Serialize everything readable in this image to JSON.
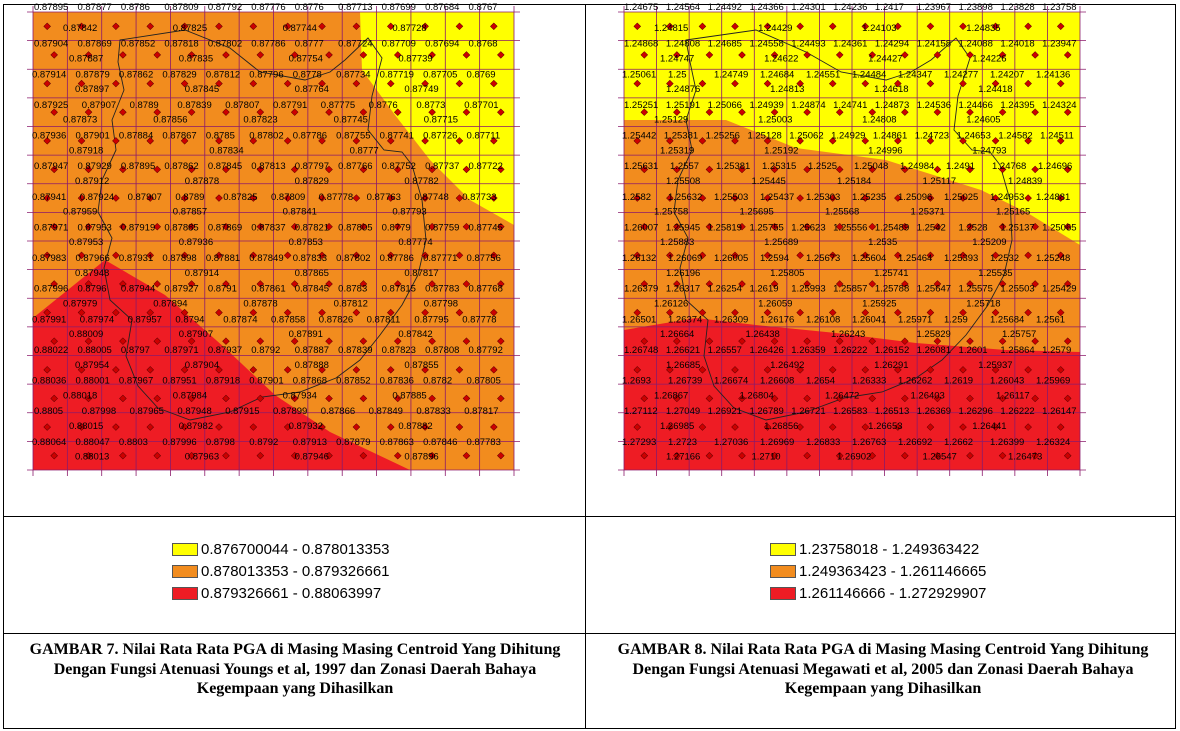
{
  "colors": {
    "yellow": "#ffff00",
    "orange": "#f28c1e",
    "red": "#ee1c24",
    "grid": "#8b1a6b",
    "point": "#cc0000"
  },
  "figure7": {
    "labels_top": [
      "0.87895",
      "0.87877",
      "0.8786",
      "0.87809",
      "0.87792",
      "0.87776",
      "0.8776",
      "0.87713",
      "0.87699",
      "0.87684",
      "0.8767"
    ],
    "row_labels": [
      [
        "0.87904",
        "0.87869",
        "0.87852",
        "0.87818",
        "0.87802",
        "0.87786",
        "0.8777",
        "0.87724",
        "0.87709",
        "0.87694",
        "0.8768"
      ],
      [
        "0.87914",
        "0.87879",
        "0.87862",
        "0.87829",
        "0.87812",
        "0.87796",
        "0.8778",
        "0.87734",
        "0.87719",
        "0.87705",
        "0.8769"
      ],
      [
        "0.87925",
        "0.87907",
        "0.8789",
        "0.87839",
        "0.87807",
        "0.87791",
        "0.87775",
        "0.8776",
        "0.8773",
        "0.87701"
      ],
      [
        "0.87936",
        "0.87901",
        "0.87884",
        "0.87867",
        "0.8785",
        "0.87802",
        "0.87786",
        "0.87755",
        "0.87741",
        "0.87726",
        "0.87711"
      ],
      [
        "0.87947",
        "0.87929",
        "0.87895",
        "0.87862",
        "0.87845",
        "0.87813",
        "0.87797",
        "0.87766",
        "0.87752",
        "0.87737",
        "0.87722"
      ],
      [
        "0.87941",
        "0.87924",
        "0.87907",
        "0.8789",
        "0.87825",
        "0.87809",
        "0.87778",
        "0.87763",
        "0.87748",
        "0.87733"
      ],
      [
        "0.87971",
        "0.87953",
        "0.87919",
        "0.87885",
        "0.87869",
        "0.87837",
        "0.87821",
        "0.87805",
        "0.8779",
        "0.87759",
        "0.87745"
      ],
      [
        "0.87983",
        "0.87966",
        "0.87931",
        "0.87898",
        "0.87881",
        "0.87849",
        "0.87833",
        "0.87802",
        "0.87786",
        "0.87771",
        "0.87756"
      ],
      [
        "0.87996",
        "0.8796",
        "0.87944",
        "0.87927",
        "0.8791",
        "0.87861",
        "0.87845",
        "0.8783",
        "0.87815",
        "0.87783",
        "0.87768"
      ],
      [
        "0.87991",
        "0.87974",
        "0.87957",
        "0.8794",
        "0.87874",
        "0.87858",
        "0.87826",
        "0.87811",
        "0.87795",
        "0.87778"
      ],
      [
        "0.88022",
        "0.88005",
        "0.8797",
        "0.87971",
        "0.87937",
        "0.8792",
        "0.87887",
        "0.87839",
        "0.87823",
        "0.87808",
        "0.87792"
      ],
      [
        "0.88036",
        "0.88001",
        "0.87967",
        "0.87951",
        "0.87918",
        "0.87901",
        "0.87868",
        "0.87852",
        "0.87836",
        "0.8782",
        "0.87805"
      ],
      [
        "0.8805",
        "0.87998",
        "0.87965",
        "0.87948",
        "0.87915",
        "0.87899",
        "0.87866",
        "0.87849",
        "0.87833",
        "0.87817"
      ],
      [
        "0.88064",
        "0.88047",
        "0.8803",
        "0.87996",
        "0.8798",
        "0.8792",
        "0.87913",
        "0.87879",
        "0.87863",
        "0.87846",
        "0.87783"
      ]
    ],
    "inner_labels": [
      [
        "0.87842",
        "0.87825",
        "0.87744",
        "0.87728"
      ],
      [
        "0.87887",
        "0.87835",
        "0.87754",
        "0.87739"
      ],
      [
        "0.87897",
        "0.87845",
        "0.87764",
        "0.87749"
      ],
      [
        "0.87873",
        "0.87856",
        "0.87823",
        "0.87745",
        "0.87715"
      ],
      [
        "0.87918",
        "0.87834",
        "0.8777"
      ],
      [
        "0.87912",
        "0.87878",
        "0.87829",
        "0.87782"
      ],
      [
        "0.87959",
        "0.87857",
        "0.87841",
        "0.87793"
      ],
      [
        "0.87953",
        "0.87936",
        "0.87853",
        "0.87774"
      ],
      [
        "0.87948",
        "0.87914",
        "0.87865",
        "0.87817"
      ],
      [
        "0.87979",
        "0.87894",
        "0.87878",
        "0.87812",
        "0.87798"
      ],
      [
        "0.88009",
        "0.87907",
        "0.87891",
        "0.87842"
      ],
      [
        "0.87954",
        "0.87904",
        "0.87888",
        "0.87855"
      ],
      [
        "0.88018",
        "0.87984",
        "0.87934",
        "0.87885"
      ],
      [
        "0.88015",
        "0.87982",
        "0.87932",
        "0.87882"
      ],
      [
        "0.88013",
        "0.87963",
        "0.87946",
        "0.87896"
      ]
    ],
    "legend": [
      {
        "label": "0.876700044 - 0.878013353",
        "color": "#ffff00"
      },
      {
        "label": "0.878013353 - 0.879326661",
        "color": "#f28c1e"
      },
      {
        "label": "0.879326661 - 0.88063997",
        "color": "#ee1c24"
      }
    ],
    "caption": "GAMBAR 7. Nilai Rata Rata PGA di Masing Masing Centroid  Yang Dihitung Dengan Fungsi Atenuasi Youngs et al, 1997  dan Zonasi Daerah Bahaya Kegempaan yang Dihasilkan"
  },
  "figure8": {
    "labels_top": [
      "1.24675",
      "1.24564",
      "1.24492",
      "1.24366",
      "1.24301",
      "1.24236",
      "1.2417",
      "1.23967",
      "1.23898",
      "1.23828",
      "1.23758"
    ],
    "row_labels": [
      [
        "1.24868",
        "1.24808",
        "1.24685",
        "1.24558",
        "1.24493",
        "1.24361",
        "1.24294",
        "1.24158",
        "1.24088",
        "1.24018",
        "1.23947"
      ],
      [
        "1.25061",
        "1.25",
        "1.24749",
        "1.24684",
        "1.24551",
        "1.24484",
        "1.24347",
        "1.24277",
        "1.24207",
        "1.24136"
      ],
      [
        "1.25251",
        "1.25191",
        "1.25066",
        "1.24939",
        "1.24874",
        "1.24741",
        "1.24873",
        "1.24536",
        "1.24466",
        "1.24395",
        "1.24324"
      ],
      [
        "1.25442",
        "1.25381",
        "1.25256",
        "1.25128",
        "1.25062",
        "1.24929",
        "1.24861",
        "1.24723",
        "1.24653",
        "1.24582",
        "1.24511"
      ],
      [
        "1.25631",
        "1.2557",
        "1.25381",
        "1.25315",
        "1.2525",
        "1.25048",
        "1.24984",
        "1.2491",
        "1.24768",
        "1.24696"
      ],
      [
        "1.2582",
        "1.25632",
        "1.25503",
        "1.25437",
        "1.25303",
        "1.25235",
        "1.25096",
        "1.25025",
        "1.24953",
        "1.24881"
      ],
      [
        "1.26007",
        "1.25945",
        "1.25819",
        "1.25755",
        "1.25623",
        "1.25556",
        "1.25489",
        "1.2542",
        "1.2528",
        "1.25137",
        "1.25065"
      ],
      [
        "1.26132",
        "1.26069",
        "1.26005",
        "1.2594",
        "1.25673",
        "1.25604",
        "1.25464",
        "1.25393",
        "1.2532",
        "1.25248"
      ],
      [
        "1.26379",
        "1.26317",
        "1.26254",
        "1.2619",
        "1.25993",
        "1.25857",
        "1.25788",
        "1.25647",
        "1.25575",
        "1.25503",
        "1.25429"
      ],
      [
        "1.26501",
        "1.26374",
        "1.26309",
        "1.26176",
        "1.26108",
        "1.26041",
        "1.25971",
        "1.259",
        "1.25684",
        "1.2561"
      ],
      [
        "1.26748",
        "1.26621",
        "1.26557",
        "1.26426",
        "1.26359",
        "1.26222",
        "1.26152",
        "1.26081",
        "1.2601",
        "1.25864",
        "1.2579"
      ],
      [
        "1.2693",
        "1.26739",
        "1.26674",
        "1.26608",
        "1.2654",
        "1.26333",
        "1.26262",
        "1.2619",
        "1.26043",
        "1.25969"
      ],
      [
        "1.27112",
        "1.27049",
        "1.26921",
        "1.26789",
        "1.26721",
        "1.26583",
        "1.26513",
        "1.26369",
        "1.26296",
        "1.26222",
        "1.26147"
      ],
      [
        "1.27293",
        "1.2723",
        "1.27036",
        "1.26969",
        "1.26833",
        "1.26763",
        "1.26692",
        "1.2662",
        "1.26399",
        "1.26324"
      ]
    ],
    "inner_labels": [
      [
        "1.24815",
        "1.24429",
        "1.24103",
        "1.24835"
      ],
      [
        "1.24747",
        "1.24622",
        "1.24427",
        "1.24226"
      ],
      [
        "1.24876",
        "1.24813",
        "1.24618",
        "1.24418"
      ],
      [
        "1.25129",
        "1.25003",
        "1.24808",
        "1.24605"
      ],
      [
        "1.25319",
        "1.25192",
        "1.24996",
        "1.24793"
      ],
      [
        "1.25508",
        "1.25445",
        "1.25184",
        "1.25117",
        "1.24839"
      ],
      [
        "1.25758",
        "1.25695",
        "1.25568",
        "1.25371",
        "1.25165"
      ],
      [
        "1.25883",
        "1.25689",
        "1.2535",
        "1.25209"
      ],
      [
        "1.26196",
        "1.25805",
        "1.25741",
        "1.25535"
      ],
      [
        "1.26126",
        "1.26059",
        "1.25925",
        "1.25718"
      ],
      [
        "1.26664",
        "1.26438",
        "1.26243",
        "1.25829",
        "1.25757"
      ],
      [
        "1.26685",
        "1.26492",
        "1.26291",
        "1.25937"
      ],
      [
        "1.26867",
        "1.26804",
        "1.26472",
        "1.26403",
        "1.26117"
      ],
      [
        "1.26985",
        "1.26856",
        "1.26653",
        "1.26441"
      ],
      [
        "1.27166",
        "1.2710",
        "1.26902",
        "1.26547",
        "1.26473"
      ]
    ],
    "legend": [
      {
        "label": "1.23758018 - 1.249363422",
        "color": "#ffff00"
      },
      {
        "label": "1.249363423 - 1.261146665",
        "color": "#f28c1e"
      },
      {
        "label": "1.261146666 - 1.272929907",
        "color": "#ee1c24"
      }
    ],
    "caption": "GAMBAR 8. Nilai Rata Rata PGA di Masing Masing Centroid  Yang Dihitung Dengan Fungsi Atenuasi Megawati et al, 2005  dan Zonasi Daerah Bahaya Kegempaan yang Dihasilkan"
  }
}
